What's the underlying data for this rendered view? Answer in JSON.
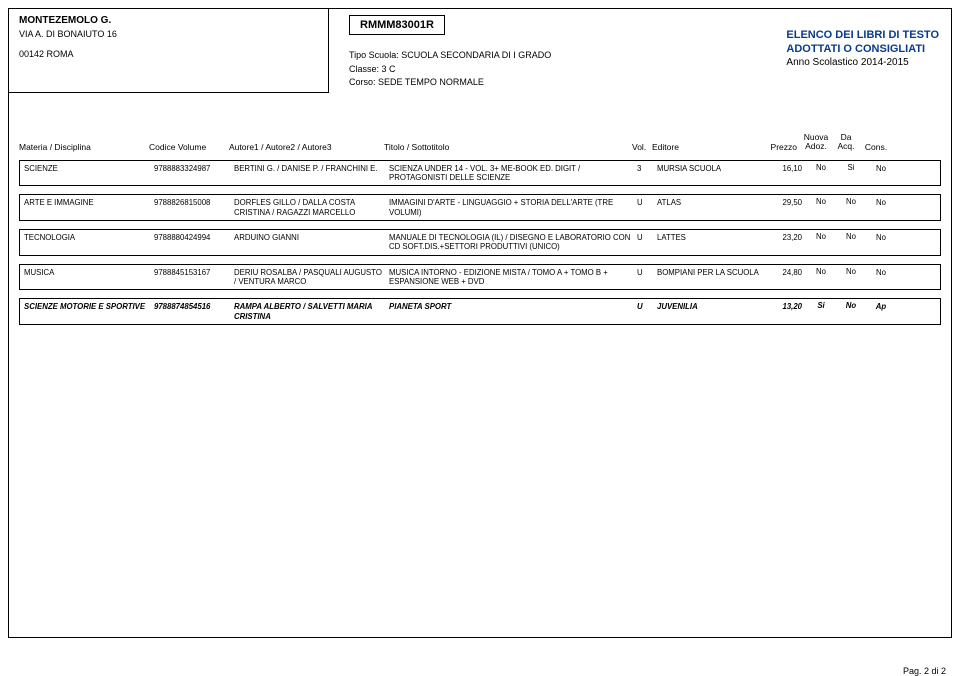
{
  "school": {
    "name": "MONTEZEMOLO G.",
    "address": "VIA A. DI BONAIUTO 16",
    "city": "00142   ROMA"
  },
  "code": "RMMM83001R",
  "course": {
    "line1_label": "Tipo Scuola:",
    "line1_value": "SCUOLA SECONDARIA DI I GRADO",
    "line2_label": "Classe:",
    "line2_value": "3 C",
    "line3_label": "Corso:",
    "line3_value": "SEDE TEMPO NORMALE"
  },
  "right_head": {
    "l1": "ELENCO DEI LIBRI DI TESTO",
    "l2": "ADOTTATI O CONSIGLIATI",
    "l3": "Anno Scolastico 2014-2015"
  },
  "headers": {
    "materia": "Materia / Disciplina",
    "codice": "Codice Volume",
    "autore": "Autore1 / Autore2 / Autore3",
    "titolo": "Titolo / Sottotitolo",
    "vol": "Vol.",
    "editore": "Editore",
    "prezzo": "Prezzo",
    "nuova1": "Nuova",
    "nuova2": "Adoz.",
    "da1": "Da",
    "da2": "Acq.",
    "cons": "Cons."
  },
  "rows": [
    {
      "materia": "SCIENZE",
      "codice": "9788883324987",
      "autore": "BERTINI G. / DANISE P. / FRANCHINI E.",
      "titolo": "SCIENZA UNDER 14 - VOL. 3+ ME-BOOK ED. DIGIT / PROTAGONISTI DELLE SCIENZE",
      "vol": "3",
      "editore": "MURSIA SCUOLA",
      "prezzo": "16,10",
      "nuova": "No",
      "da": "Si",
      "cons": "No"
    },
    {
      "materia": "ARTE E IMMAGINE",
      "codice": "9788826815008",
      "autore": "DORFLES GILLO / DALLA COSTA CRISTINA / RAGAZZI MARCELLO",
      "titolo": "IMMAGINI D'ARTE - LINGUAGGIO + STORIA DELL'ARTE (TRE VOLUMI)",
      "vol": "U",
      "editore": "ATLAS",
      "prezzo": "29,50",
      "nuova": "No",
      "da": "No",
      "cons": "No"
    },
    {
      "materia": "TECNOLOGIA",
      "codice": "9788880424994",
      "autore": "ARDUINO GIANNI",
      "titolo": "MANUALE DI TECNOLOGIA (IL) / DISEGNO E LABORATORIO CON CD SOFT.DIS.+SETTORI PRODUTTIVI (UNICO)",
      "vol": "U",
      "editore": "LATTES",
      "prezzo": "23,20",
      "nuova": "No",
      "da": "No",
      "cons": "No"
    },
    {
      "materia": "MUSICA",
      "codice": "9788845153167",
      "autore": "DERIU ROSALBA / PASQUALI AUGUSTO / VENTURA MARCO",
      "titolo": "MUSICA INTORNO - EDIZIONE MISTA / TOMO A + TOMO B + ESPANSIONE WEB + DVD",
      "vol": "U",
      "editore": "BOMPIANI PER LA SCUOLA",
      "prezzo": "24,80",
      "nuova": "No",
      "da": "No",
      "cons": "No"
    },
    {
      "materia": "SCIENZE MOTORIE E SPORTIVE",
      "codice": "9788874854516",
      "autore": "RAMPA ALBERTO / SALVETTI MARIA CRISTINA",
      "titolo": "PIANETA SPORT",
      "vol": "U",
      "editore": "JUVENILIA",
      "prezzo": "13,20",
      "nuova": "Si",
      "da": "No",
      "cons": "Ap",
      "bold": true
    }
  ],
  "footer": "Pag. 2 di 2"
}
